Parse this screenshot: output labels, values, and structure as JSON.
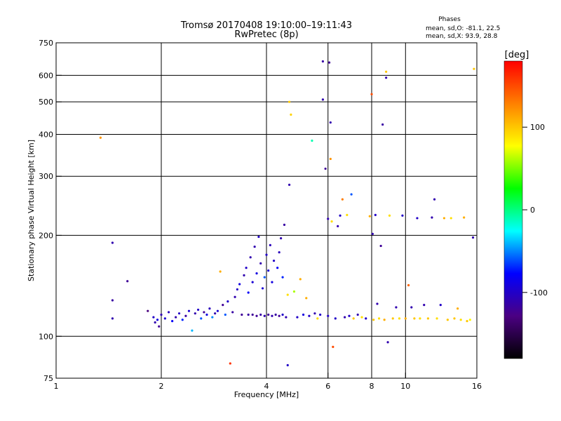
{
  "chart_data": {
    "type": "scatter",
    "title": "Tromsø 20170408  19:10:00–19:11:43",
    "subtitle": "RwPretec (8p)",
    "xlabel": "Frequency [MHz]",
    "ylabel": "Stationary phase Virtual Height [km]",
    "xscale": "log",
    "yscale": "log",
    "xlim": [
      1,
      16
    ],
    "ylim": [
      75,
      750
    ],
    "x_ticks": [
      "1",
      "2",
      "4",
      "6",
      "8",
      "10",
      "16"
    ],
    "x_tick_values": [
      1,
      2,
      4,
      6,
      8,
      10,
      16
    ],
    "y_ticks": [
      "75",
      "100",
      "200",
      "300",
      "400",
      "500",
      "600",
      "750"
    ],
    "y_tick_values": [
      75,
      100,
      200,
      300,
      400,
      500,
      600,
      750
    ],
    "grid": true,
    "annotation": {
      "heading": "Phases",
      "line1": "mean, sd,O: -81.1, 22.5",
      "line2": "mean, sd,X:  93.9, 28.8"
    },
    "colorbar": {
      "unit": "[deg]",
      "range": [
        -180,
        180
      ],
      "ticks": [
        "100",
        "0",
        "-100"
      ],
      "tick_values": [
        100,
        0,
        -100
      ],
      "colors": [
        "#000000",
        "#4b0082",
        "#0000ff",
        "#00ffff",
        "#00ff00",
        "#ffff00",
        "#ff8000",
        "#ff0000"
      ]
    },
    "points": [
      [
        1.34,
        391,
        120
      ],
      [
        1.45,
        190,
        -110
      ],
      [
        1.45,
        128,
        -115
      ],
      [
        1.45,
        113,
        -110
      ],
      [
        1.6,
        146,
        -120
      ],
      [
        1.83,
        119,
        -130
      ],
      [
        1.9,
        114,
        -100
      ],
      [
        1.92,
        110,
        -110
      ],
      [
        1.95,
        112,
        -90
      ],
      [
        1.97,
        107,
        -120
      ],
      [
        2.0,
        116,
        -110
      ],
      [
        2.05,
        113,
        -95
      ],
      [
        2.1,
        118,
        -105
      ],
      [
        2.15,
        111,
        -80
      ],
      [
        2.2,
        114,
        -110
      ],
      [
        2.25,
        117,
        -100
      ],
      [
        2.3,
        112,
        -70
      ],
      [
        2.35,
        115,
        -115
      ],
      [
        2.4,
        119,
        -95
      ],
      [
        2.45,
        104,
        -40
      ],
      [
        2.5,
        117,
        -110
      ],
      [
        2.55,
        120,
        -100
      ],
      [
        2.6,
        113,
        -60
      ],
      [
        2.65,
        118,
        -120
      ],
      [
        2.7,
        116,
        -90
      ],
      [
        2.75,
        121,
        -105
      ],
      [
        2.8,
        114,
        -50
      ],
      [
        2.85,
        117,
        -110
      ],
      [
        2.9,
        119,
        -95
      ],
      [
        2.95,
        156,
        110
      ],
      [
        3.0,
        124,
        -120
      ],
      [
        3.05,
        116,
        -60
      ],
      [
        3.1,
        127,
        -100
      ],
      [
        3.15,
        83,
        160
      ],
      [
        3.2,
        118,
        -115
      ],
      [
        3.25,
        131,
        -110
      ],
      [
        3.3,
        138,
        -100
      ],
      [
        3.35,
        143,
        -90
      ],
      [
        3.4,
        116,
        -120
      ],
      [
        3.45,
        152,
        -110
      ],
      [
        3.5,
        160,
        -100
      ],
      [
        3.55,
        135,
        -80
      ],
      [
        3.55,
        116,
        -115
      ],
      [
        3.6,
        172,
        -110
      ],
      [
        3.65,
        145,
        -95
      ],
      [
        3.65,
        116,
        -120
      ],
      [
        3.7,
        185,
        -110
      ],
      [
        3.75,
        154,
        -90
      ],
      [
        3.75,
        115,
        -120
      ],
      [
        3.8,
        198,
        -100
      ],
      [
        3.85,
        165,
        -110
      ],
      [
        3.85,
        116,
        -115
      ],
      [
        3.9,
        139,
        -95
      ],
      [
        3.95,
        150,
        -60
      ],
      [
        3.95,
        115,
        -110
      ],
      [
        4.0,
        175,
        -100
      ],
      [
        4.05,
        157,
        -95
      ],
      [
        4.05,
        116,
        -120
      ],
      [
        4.1,
        187,
        -105
      ],
      [
        4.15,
        145,
        -90
      ],
      [
        4.15,
        115,
        -110
      ],
      [
        4.2,
        168,
        -100
      ],
      [
        4.25,
        116,
        -115
      ],
      [
        4.3,
        160,
        -80
      ],
      [
        4.35,
        178,
        -105
      ],
      [
        4.35,
        115,
        -120
      ],
      [
        4.4,
        196,
        -110
      ],
      [
        4.45,
        150,
        -70
      ],
      [
        4.45,
        116,
        -100
      ],
      [
        4.5,
        215,
        -115
      ],
      [
        4.55,
        114,
        -110
      ],
      [
        4.6,
        133,
        90
      ],
      [
        4.6,
        82,
        -100
      ],
      [
        4.65,
        283,
        -110
      ],
      [
        4.7,
        458,
        95
      ],
      [
        4.65,
        500,
        100
      ],
      [
        4.8,
        136,
        60
      ],
      [
        4.9,
        114,
        -100
      ],
      [
        5.0,
        148,
        110
      ],
      [
        5.1,
        116,
        -90
      ],
      [
        5.2,
        130,
        110
      ],
      [
        5.3,
        115,
        -100
      ],
      [
        5.4,
        383,
        -10
      ],
      [
        5.5,
        117,
        -110
      ],
      [
        5.6,
        113,
        90
      ],
      [
        5.7,
        116,
        -100
      ],
      [
        5.8,
        660,
        -115
      ],
      [
        5.8,
        508,
        -110
      ],
      [
        5.9,
        316,
        -120
      ],
      [
        6.0,
        224,
        -110
      ],
      [
        6.0,
        115,
        -100
      ],
      [
        6.05,
        655,
        -120
      ],
      [
        6.1,
        434,
        -110
      ],
      [
        6.1,
        338,
        120
      ],
      [
        6.15,
        220,
        90
      ],
      [
        6.2,
        93,
        150
      ],
      [
        6.3,
        113,
        -100
      ],
      [
        6.4,
        213,
        -110
      ],
      [
        6.5,
        229,
        -100
      ],
      [
        6.6,
        256,
        130
      ],
      [
        6.7,
        114,
        -110
      ],
      [
        6.8,
        230,
        90
      ],
      [
        6.9,
        115,
        -100
      ],
      [
        7.0,
        265,
        -60
      ],
      [
        7.1,
        113,
        100
      ],
      [
        7.3,
        116,
        -110
      ],
      [
        7.5,
        114,
        90
      ],
      [
        7.7,
        113,
        -100
      ],
      [
        7.9,
        228,
        110
      ],
      [
        8.0,
        527,
        150
      ],
      [
        8.05,
        202,
        -110
      ],
      [
        8.1,
        112,
        100
      ],
      [
        8.2,
        230,
        -100
      ],
      [
        8.3,
        125,
        -110
      ],
      [
        8.4,
        113,
        90
      ],
      [
        8.5,
        186,
        -120
      ],
      [
        8.6,
        428,
        -115
      ],
      [
        8.7,
        112,
        110
      ],
      [
        8.8,
        590,
        -110
      ],
      [
        8.8,
        615,
        100
      ],
      [
        8.9,
        96,
        -110
      ],
      [
        9.0,
        229,
        90
      ],
      [
        9.2,
        113,
        100
      ],
      [
        9.4,
        122,
        -110
      ],
      [
        9.6,
        113,
        90
      ],
      [
        9.8,
        229,
        -100
      ],
      [
        10.0,
        113,
        110
      ],
      [
        10.2,
        142,
        140
      ],
      [
        10.4,
        122,
        -110
      ],
      [
        10.6,
        113,
        100
      ],
      [
        10.8,
        225,
        -100
      ],
      [
        11.0,
        113,
        90
      ],
      [
        11.3,
        124,
        -110
      ],
      [
        11.6,
        113,
        100
      ],
      [
        11.9,
        226,
        -110
      ],
      [
        12.1,
        256,
        -110
      ],
      [
        12.3,
        113,
        90
      ],
      [
        12.6,
        124,
        -100
      ],
      [
        12.9,
        225,
        110
      ],
      [
        13.2,
        112,
        100
      ],
      [
        13.5,
        225,
        90
      ],
      [
        13.8,
        113,
        100
      ],
      [
        14.1,
        121,
        110
      ],
      [
        14.4,
        112,
        90
      ],
      [
        14.7,
        226,
        110
      ],
      [
        15.0,
        111,
        100
      ],
      [
        15.3,
        112,
        80
      ],
      [
        15.6,
        197,
        -110
      ],
      [
        15.7,
        627,
        100
      ]
    ]
  }
}
